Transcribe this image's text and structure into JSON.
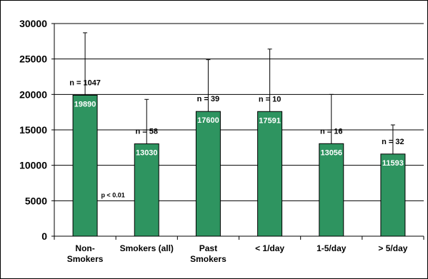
{
  "chart_data": {
    "type": "bar",
    "categories": [
      [
        "Non-",
        "Smokers"
      ],
      [
        "Smokers (all)"
      ],
      [
        "Past",
        "Smokers"
      ],
      [
        "< 1/day"
      ],
      [
        "1-5/day"
      ],
      [
        "> 5/day"
      ]
    ],
    "values": [
      19890,
      13030,
      17600,
      17591,
      13056,
      11593
    ],
    "value_labels": [
      "19890",
      "13030",
      "17600",
      "17591",
      "13056",
      "11593"
    ],
    "error_upper": [
      28700,
      19300,
      24900,
      26400,
      20000,
      15700
    ],
    "n_labels": [
      "n = 1047",
      "n = 58",
      "n = 39",
      "n = 10",
      "n = 16",
      "n = 32"
    ],
    "annotations": [
      {
        "text": "p < 0.01"
      }
    ],
    "y_ticks": [
      "0",
      "5000",
      "10000",
      "15000",
      "20000",
      "25000",
      "30000"
    ],
    "ylim": [
      0,
      30000
    ],
    "grid": true,
    "legend": "none",
    "colors": {
      "bar": "#2e9460",
      "bar_border": "#000000",
      "grid": "#000000",
      "axis": "#000000"
    }
  }
}
